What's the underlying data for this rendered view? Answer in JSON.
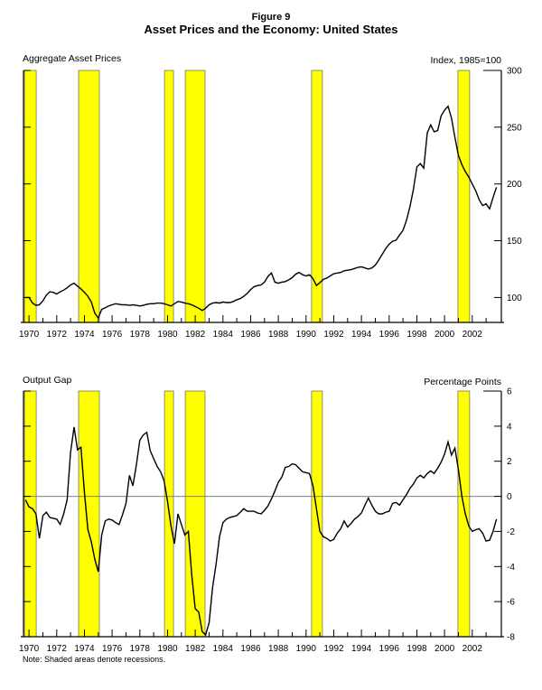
{
  "figure": {
    "label": "Figure 9",
    "title": "Asset Prices and the Economy: United States",
    "note": "Note: Shaded areas denote recessions."
  },
  "colors": {
    "recession_fill": "#ffff00",
    "recession_border": "#6b6b6b",
    "data_line": "#000000",
    "axis": "#000000",
    "zero_line": "#808080",
    "background": "#ffffff"
  },
  "x_axis": {
    "xlim": [
      1969.6,
      2004.1
    ],
    "minor_tick_years_start": 1970,
    "minor_tick_years_end": 2003,
    "year_labels": [
      "1970",
      "1972",
      "1974",
      "1976",
      "1978",
      "1980",
      "1982",
      "1984",
      "1986",
      "1988",
      "1990",
      "1992",
      "1994",
      "1996",
      "1998",
      "2000",
      "2002"
    ]
  },
  "recessions": [
    {
      "start": 1969.67,
      "end": 1970.52
    },
    {
      "start": 1973.58,
      "end": 1975.08
    },
    {
      "start": 1979.78,
      "end": 1980.43
    },
    {
      "start": 1981.28,
      "end": 1982.71
    },
    {
      "start": 1990.4,
      "end": 1991.18
    },
    {
      "start": 2000.96,
      "end": 2001.81
    }
  ],
  "chart_data": [
    {
      "type": "line",
      "title": "Aggregate Asset Prices",
      "unit_label": "Index, 1985=100",
      "ylim": [
        78,
        300
      ],
      "yticks": [
        100,
        150,
        200,
        250,
        300
      ],
      "x_start": 1969.75,
      "x_step": 0.25,
      "values": [
        100,
        100,
        95,
        93,
        93.5,
        97,
        102,
        105,
        104.5,
        103,
        105,
        106.5,
        108.5,
        111,
        112.5,
        110,
        107.5,
        104.5,
        101,
        96,
        86,
        82,
        89.5,
        91,
        92.5,
        93.5,
        94.5,
        94,
        93.5,
        93.5,
        93,
        93.5,
        93,
        92.5,
        93,
        94,
        94.5,
        94.5,
        95,
        95,
        94.5,
        93.5,
        92.5,
        94.5,
        96.5,
        96,
        95,
        94.5,
        93.5,
        92,
        90.5,
        88.5,
        90.5,
        93.5,
        95,
        95.5,
        95,
        96,
        95.5,
        95.5,
        96.5,
        98,
        99,
        101,
        103.5,
        107,
        109.5,
        110.5,
        111,
        113.5,
        118.5,
        121.5,
        113.5,
        112.5,
        113.5,
        114,
        115.5,
        117.5,
        120.5,
        122,
        120,
        119,
        120,
        116.5,
        110.5,
        113,
        116,
        117,
        119,
        121,
        121.5,
        122,
        123.5,
        124,
        124.5,
        125.5,
        126.5,
        127,
        126,
        125,
        126,
        128.5,
        133,
        138,
        143,
        147,
        149.5,
        150.5,
        155,
        159,
        168,
        180,
        195,
        215,
        218,
        214,
        245,
        252,
        246,
        247,
        260,
        265,
        268.5,
        258,
        241,
        225,
        217,
        211,
        206,
        200,
        194,
        186,
        181,
        182.5,
        178,
        188,
        197
      ]
    },
    {
      "type": "line",
      "title": "Output Gap",
      "unit_label": "Percentage Points",
      "ylim": [
        -8,
        6
      ],
      "yticks": [
        -8,
        -6,
        -4,
        -2,
        0,
        2,
        4,
        6
      ],
      "zero_line": true,
      "x_start": 1969.75,
      "x_step": 0.25,
      "values": [
        -0.2,
        -0.6,
        -0.7,
        -1.0,
        -2.4,
        -1.1,
        -0.9,
        -1.2,
        -1.25,
        -1.3,
        -1.6,
        -1.0,
        -0.2,
        2.5,
        3.95,
        2.65,
        2.8,
        0.2,
        -1.9,
        -2.6,
        -3.6,
        -4.3,
        -2.2,
        -1.4,
        -1.3,
        -1.35,
        -1.5,
        -1.6,
        -1.05,
        -0.4,
        1.2,
        0.6,
        1.8,
        3.2,
        3.5,
        3.65,
        2.6,
        2.15,
        1.7,
        1.4,
        0.9,
        -0.3,
        -1.7,
        -2.7,
        -1.0,
        -1.6,
        -2.2,
        -2.0,
        -4.5,
        -6.4,
        -6.6,
        -7.7,
        -7.9,
        -7.2,
        -5.2,
        -3.9,
        -2.3,
        -1.5,
        -1.3,
        -1.2,
        -1.15,
        -1.1,
        -0.9,
        -0.7,
        -0.85,
        -0.85,
        -0.85,
        -0.95,
        -1.0,
        -0.8,
        -0.55,
        -0.15,
        0.3,
        0.8,
        1.1,
        1.65,
        1.7,
        1.85,
        1.8,
        1.6,
        1.4,
        1.35,
        1.3,
        0.6,
        -0.7,
        -2.0,
        -2.3,
        -2.4,
        -2.55,
        -2.45,
        -2.1,
        -1.85,
        -1.4,
        -1.75,
        -1.55,
        -1.3,
        -1.15,
        -0.95,
        -0.5,
        -0.1,
        -0.5,
        -0.85,
        -1.0,
        -1.0,
        -0.9,
        -0.85,
        -0.4,
        -0.35,
        -0.5,
        -0.2,
        0.1,
        0.45,
        0.7,
        1.05,
        1.2,
        1.05,
        1.3,
        1.45,
        1.3,
        1.6,
        1.95,
        2.4,
        3.1,
        2.35,
        2.75,
        1.5,
        0.0,
        -1.0,
        -1.7,
        -2.0,
        -1.9,
        -1.85,
        -2.1,
        -2.55,
        -2.5,
        -2.0,
        -1.3
      ]
    }
  ]
}
